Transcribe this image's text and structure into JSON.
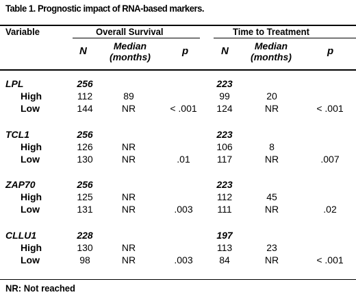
{
  "title": "Table 1. Prognostic impact of RNA-based markers.",
  "headers": {
    "variable": "Variable",
    "overall_survival": "Overall Survival",
    "time_to_treatment": "Time to Treatment",
    "n": "N",
    "median_line1": "Median",
    "median_line2": "(months)",
    "p": "p"
  },
  "groups": [
    {
      "name": "LPL",
      "os_total": "256",
      "ttt_total": "223",
      "rows": [
        {
          "level": "High",
          "os_n": "112",
          "os_median": "89",
          "os_p": "",
          "ttt_n": "99",
          "ttt_median": "20",
          "ttt_p": ""
        },
        {
          "level": "Low",
          "os_n": "144",
          "os_median": "NR",
          "os_p": "< .001",
          "ttt_n": "124",
          "ttt_median": "NR",
          "ttt_p": "< .001"
        }
      ]
    },
    {
      "name": "TCL1",
      "os_total": "256",
      "ttt_total": "223",
      "rows": [
        {
          "level": "High",
          "os_n": "126",
          "os_median": "NR",
          "os_p": "",
          "ttt_n": "106",
          "ttt_median": "8",
          "ttt_p": ""
        },
        {
          "level": "Low",
          "os_n": "130",
          "os_median": "NR",
          "os_p": ".01",
          "ttt_n": "117",
          "ttt_median": "NR",
          "ttt_p": ".007"
        }
      ]
    },
    {
      "name": "ZAP70",
      "os_total": "256",
      "ttt_total": "223",
      "rows": [
        {
          "level": "High",
          "os_n": "125",
          "os_median": "NR",
          "os_p": "",
          "ttt_n": "112",
          "ttt_median": "45",
          "ttt_p": ""
        },
        {
          "level": "Low",
          "os_n": "131",
          "os_median": "NR",
          "os_p": ".003",
          "ttt_n": "111",
          "ttt_median": "NR",
          "ttt_p": ".02"
        }
      ]
    },
    {
      "name": "CLLU1",
      "os_total": "228",
      "ttt_total": "197",
      "rows": [
        {
          "level": "High",
          "os_n": "130",
          "os_median": "NR",
          "os_p": "",
          "ttt_n": "113",
          "ttt_median": "23",
          "ttt_p": ""
        },
        {
          "level": "Low",
          "os_n": "98",
          "os_median": "NR",
          "os_p": ".003",
          "ttt_n": "84",
          "ttt_median": "NR",
          "ttt_p": "< .001"
        }
      ]
    }
  ],
  "footnote": "NR: Not reached"
}
